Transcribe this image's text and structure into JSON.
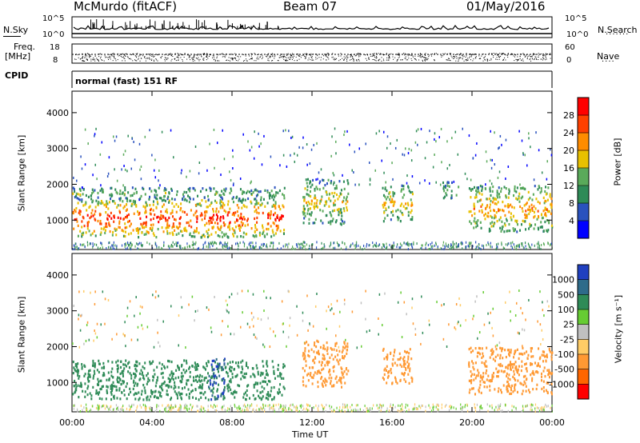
{
  "header": {
    "station": "McMurdo (fitACF)",
    "beam": "Beam 07",
    "date": "01/May/2016"
  },
  "top_panels": {
    "nsky_label": "N.Sky",
    "nsky_ticks": [
      "10^5",
      "10^0"
    ],
    "nsearch_label": "N.Search",
    "nsearch_ticks": [
      "10^5",
      "10^0"
    ],
    "freq_label": "Freq.",
    "freq_unit": "[MHz]",
    "freq_ticks": [
      "18",
      "8"
    ],
    "nave_label": "Nave",
    "nave_ticks": [
      "60",
      "0"
    ],
    "cpid_label": "CPID",
    "cpid_value": "normal (fast) 151 RF"
  },
  "chart_data": [
    {
      "type": "heatmap",
      "ylabel": "Slant Range [km]",
      "xlabel": "Time UT",
      "x_ticks": [
        "00:00",
        "04:00",
        "08:00",
        "12:00",
        "16:00",
        "20:00",
        "00:00"
      ],
      "xlim_hours": [
        0,
        24
      ],
      "y_ticks": [
        1000,
        2000,
        3000,
        4000
      ],
      "ylim": [
        180,
        4600
      ],
      "colorbar": {
        "label": "Power [dB]",
        "ticks": [
          "4",
          "8",
          "12",
          "16",
          "20",
          "24",
          "28"
        ],
        "colors": [
          "#0000ff",
          "#2a52be",
          "#2e8b57",
          "#5aaa5a",
          "#e8c000",
          "#ff8c00",
          "#ff4000",
          "#ff0000"
        ]
      },
      "regions": [
        {
          "t0": 0.0,
          "t1": 10.6,
          "r0": 550,
          "r1": 1600,
          "level": 28
        },
        {
          "t0": 0.0,
          "t1": 10.6,
          "r0": 1600,
          "r1": 1950,
          "level": 14
        },
        {
          "t0": 11.5,
          "t1": 13.8,
          "r0": 900,
          "r1": 2200,
          "level": 18
        },
        {
          "t0": 15.5,
          "t1": 17.0,
          "r0": 1000,
          "r1": 2000,
          "level": 20
        },
        {
          "t0": 18.5,
          "t1": 19.3,
          "r0": 1600,
          "r1": 2100,
          "level": 16
        },
        {
          "t0": 19.8,
          "t1": 24.0,
          "r0": 700,
          "r1": 2000,
          "level": 22
        }
      ]
    },
    {
      "type": "heatmap",
      "ylabel": "Slant Range [km]",
      "xlabel": "Time UT",
      "x_ticks": [
        "00:00",
        "04:00",
        "08:00",
        "12:00",
        "16:00",
        "20:00",
        "00:00"
      ],
      "xlim_hours": [
        0,
        24
      ],
      "y_ticks": [
        1000,
        2000,
        3000,
        4000
      ],
      "ylim": [
        180,
        4600
      ],
      "colorbar": {
        "label": "Velocity [m s⁻¹]",
        "ticks": [
          "1000",
          "500",
          "100",
          "25",
          "-25",
          "-100",
          "-500",
          "-1000"
        ],
        "colors": [
          "#2040c0",
          "#2e6b8a",
          "#2e8b57",
          "#66cc33",
          "#c0c0c0",
          "#ffcc66",
          "#ff9933",
          "#ff6600",
          "#ff0000"
        ]
      },
      "regions": [
        {
          "t0": 0.0,
          "t1": 10.6,
          "r0": 550,
          "r1": 1650,
          "velocity": 300
        },
        {
          "t0": 6.8,
          "t1": 7.6,
          "r0": 550,
          "r1": 1700,
          "velocity": 1000
        },
        {
          "t0": 11.5,
          "t1": 13.8,
          "r0": 900,
          "r1": 2200,
          "velocity": -300
        },
        {
          "t0": 15.5,
          "t1": 17.0,
          "r0": 1000,
          "r1": 2000,
          "velocity": -300
        },
        {
          "t0": 19.8,
          "t1": 24.0,
          "r0": 700,
          "r1": 2000,
          "velocity": -300
        }
      ]
    }
  ]
}
